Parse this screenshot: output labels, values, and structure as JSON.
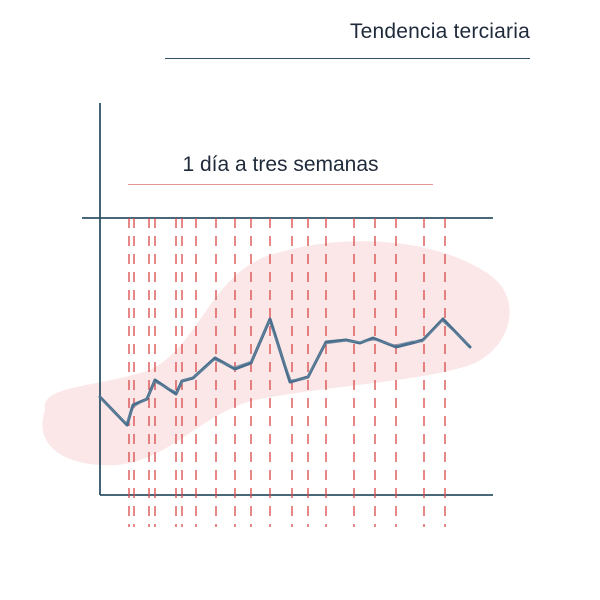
{
  "diagram": {
    "title": "Tendencia terciaria",
    "subtitle": "1 día a tres semanas"
  },
  "colors": {
    "axis": "#2f5266",
    "line": "#4a6f8c",
    "dashes": "#d94848",
    "blob": "#fbe7e7"
  }
}
